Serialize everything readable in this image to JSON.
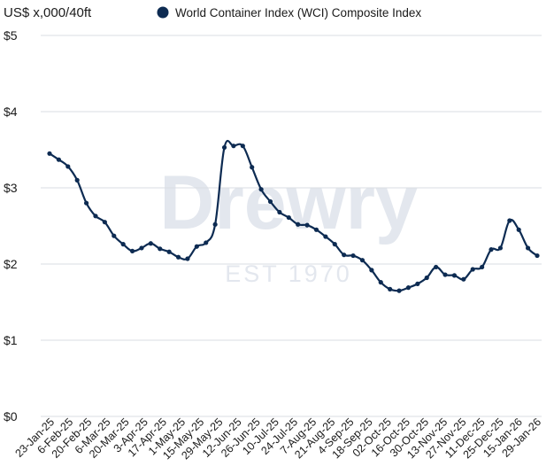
{
  "chart_data": {
    "type": "line",
    "title": "",
    "ylabel": "US$ x,000/40ft",
    "xlabel": "",
    "ylim": [
      0,
      5
    ],
    "y_ticks": [
      {
        "value": 0,
        "label": "$0"
      },
      {
        "value": 1,
        "label": "$1"
      },
      {
        "value": 2,
        "label": "$2"
      },
      {
        "value": 3,
        "label": "$3"
      },
      {
        "value": 4,
        "label": "$4"
      },
      {
        "value": 5,
        "label": "$5"
      }
    ],
    "grid": true,
    "legend_position": "top",
    "x_tick_labels": [
      "23-Jan-25",
      "6-Feb-25",
      "20-Feb-25",
      "6-Mar-25",
      "20-Mar-25",
      "3-Apr-25",
      "17-Apr-25",
      "1-May-25",
      "15-May-25",
      "29-May-25",
      "12-Jun-25",
      "26-Jun-25",
      "10-Jul-25",
      "24-Jul-25",
      "7-Aug-25",
      "21-Aug-25",
      "4-Sep-25",
      "18-Sep-25",
      "02-Oct-25",
      "16-Oct-25",
      "30-Oct-25",
      "13-Nov-25",
      "27-Nov-25",
      "11-Dec-25",
      "25-Dec-25",
      "15-Jan-26",
      "29-Jan-26"
    ],
    "series": [
      {
        "name": "World Container Index (WCI) Composite Index",
        "color": "#0d2b52",
        "values": [
          3.45,
          3.37,
          3.28,
          3.1,
          2.8,
          2.63,
          2.55,
          2.37,
          2.26,
          2.17,
          2.21,
          2.27,
          2.2,
          2.16,
          2.09,
          2.07,
          2.23,
          2.28,
          2.52,
          3.53,
          3.55,
          3.55,
          3.27,
          2.98,
          2.82,
          2.68,
          2.61,
          2.52,
          2.51,
          2.45,
          2.36,
          2.26,
          2.12,
          2.11,
          2.05,
          1.92,
          1.76,
          1.67,
          1.65,
          1.69,
          1.74,
          1.82,
          1.96,
          1.86,
          1.85,
          1.8,
          1.93,
          1.96,
          2.19,
          2.21,
          2.57,
          2.45,
          2.21,
          2.11
        ]
      }
    ]
  },
  "watermark": {
    "brand": "Drewry",
    "tagline": "EST 1970"
  },
  "colors": {
    "grid": "#d8dce3",
    "axis_text": "#1a1a1a",
    "watermark": "#e3e7ee"
  }
}
